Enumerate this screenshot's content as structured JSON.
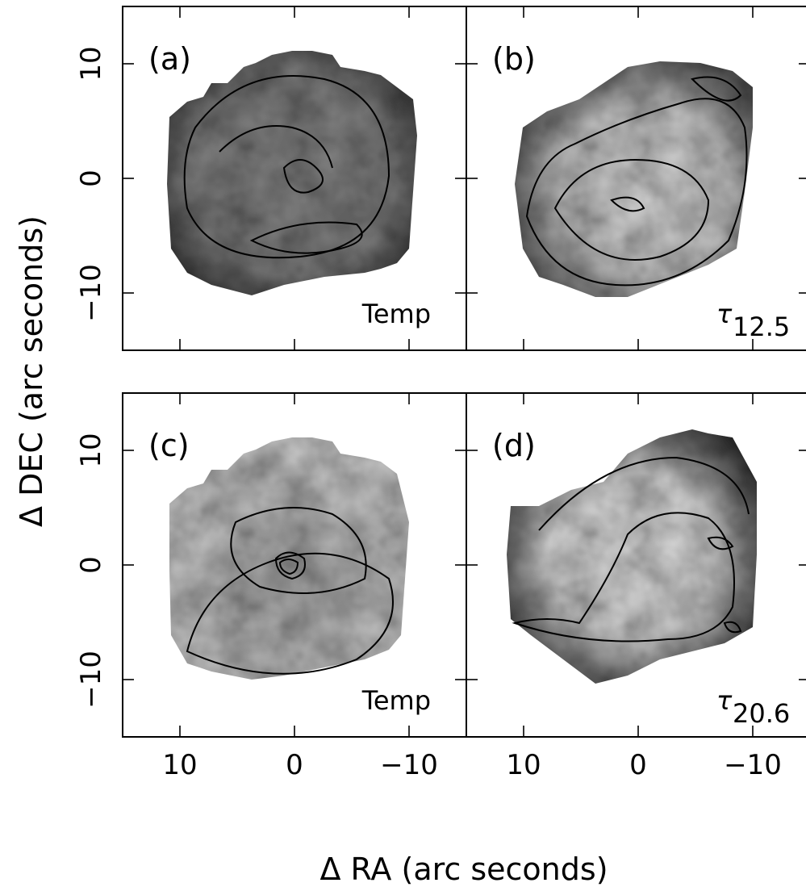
{
  "figure": {
    "xlabel": "Δ RA (arc seconds)",
    "ylabel": "Δ DEC (arc seconds)"
  },
  "chart_data": [
    {
      "type": "image",
      "panel_label": "(a)",
      "annotation": "Temp",
      "xlim": [
        15,
        -15
      ],
      "ylim": [
        -15,
        15
      ],
      "xticks": [
        10,
        0,
        {
          "value": -10,
          "label": "−10"
        }
      ],
      "yticks": [
        {
          "value": -10,
          "label": "−10"
        },
        0,
        10
      ]
    },
    {
      "type": "image",
      "panel_label": "(b)",
      "annotation": "τ",
      "annotation_subscript": "12.5",
      "xlim": [
        15,
        -15
      ],
      "ylim": [
        -15,
        15
      ],
      "xticks": [
        10,
        0,
        {
          "value": -10,
          "label": "−10"
        }
      ],
      "yticks": [
        {
          "value": -10,
          "label": "−10"
        },
        0,
        10
      ]
    },
    {
      "type": "image",
      "panel_label": "(c)",
      "annotation": "Temp",
      "xlim": [
        15,
        -15
      ],
      "ylim": [
        -15,
        15
      ],
      "xticks": [
        10,
        0,
        {
          "value": -10,
          "label": "−10"
        }
      ],
      "yticks": [
        {
          "value": -10,
          "label": "−10"
        },
        0,
        10
      ]
    },
    {
      "type": "image",
      "panel_label": "(d)",
      "annotation": "τ",
      "annotation_subscript": "20.6",
      "xlim": [
        15,
        -15
      ],
      "ylim": [
        -15,
        15
      ],
      "xticks": [
        10,
        0,
        {
          "value": -10,
          "label": "−10"
        }
      ],
      "yticks": [
        {
          "value": -10,
          "label": "−10"
        },
        0,
        10
      ]
    }
  ]
}
